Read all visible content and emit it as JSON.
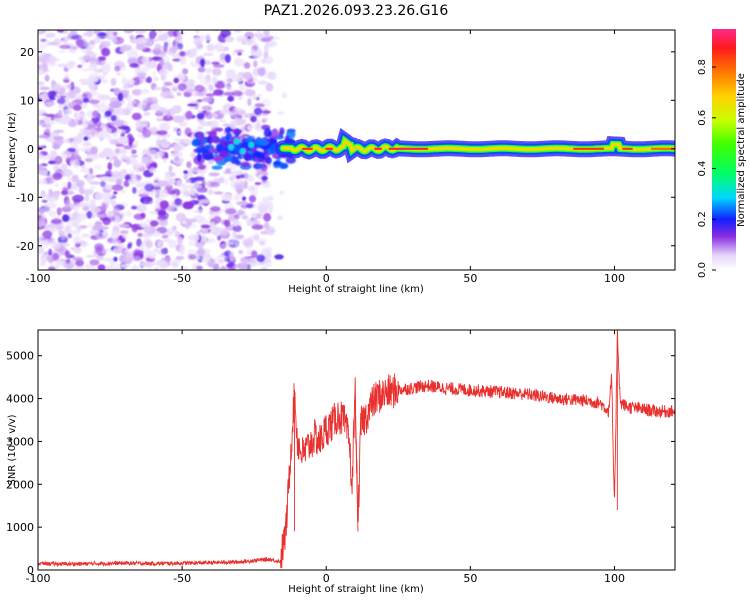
{
  "chart_data": [
    {
      "type": "heatmap",
      "title": "PAZ1.2026.093.23.26.G16",
      "xlabel": "Height of straight line (km)",
      "ylabel": "Frequency (Hz)",
      "xlim": [
        -100,
        121
      ],
      "ylim": [
        -25,
        24.5
      ],
      "xticks": [
        -100,
        -50,
        0,
        50,
        100
      ],
      "yticks": [
        -20,
        -10,
        0,
        10,
        20
      ],
      "colorbar": {
        "label": "Normalized spectral amplitude",
        "range": [
          0,
          0.95
        ],
        "ticks": [
          0.0,
          0.2,
          0.4,
          0.6,
          0.8
        ],
        "tick_labels": [
          "0.0",
          "0.2",
          "0.4",
          "0.6",
          "0.8"
        ]
      },
      "description_regions": [
        {
          "x_range": [
            -100,
            -19
          ],
          "f_range": [
            -25,
            24
          ],
          "amplitude": [
            0.02,
            0.25
          ],
          "pattern": "scattered noise speckles"
        },
        {
          "x_range": [
            -45,
            -12
          ],
          "f_range": [
            -4,
            4
          ],
          "amplitude": [
            0.15,
            0.4
          ],
          "pattern": "transition blobs"
        },
        {
          "x_range": [
            -15,
            121
          ],
          "f_center": 0,
          "f_halfwidth": 1.2,
          "amplitude": [
            0.6,
            0.95
          ],
          "pattern": "narrow carrier band"
        }
      ]
    },
    {
      "type": "line",
      "xlabel": "Height of straight line (km)",
      "ylabel": "SNR (10 * v/v)",
      "xlim": [
        -100,
        121
      ],
      "ylim": [
        0,
        5600
      ],
      "xticks": [
        -100,
        -50,
        0,
        50,
        100
      ],
      "yticks": [
        0,
        1000,
        2000,
        3000,
        4000,
        5000
      ],
      "color": "#e8302e",
      "series": [
        {
          "name": "SNR",
          "x": [
            -100,
            -90,
            -80,
            -70,
            -60,
            -50,
            -40,
            -30,
            -20,
            -16,
            -14,
            -13,
            -12,
            -11,
            -10,
            -9,
            -8,
            -6,
            -4,
            -2,
            0,
            2,
            4,
            6,
            8,
            9,
            10,
            11,
            12,
            14,
            16,
            18,
            20,
            22,
            25,
            30,
            35,
            40,
            45,
            50,
            60,
            70,
            80,
            90,
            95,
            98,
            99,
            100,
            101,
            102,
            105,
            110,
            115,
            121
          ],
          "y": [
            150,
            140,
            150,
            160,
            150,
            160,
            170,
            190,
            250,
            200,
            900,
            2000,
            3100,
            4150,
            3000,
            2800,
            2700,
            2900,
            3100,
            3000,
            3300,
            3400,
            3600,
            3500,
            3000,
            1900,
            4250,
            1000,
            3400,
            3600,
            3900,
            4050,
            4100,
            4150,
            4200,
            4250,
            4300,
            4250,
            4220,
            4200,
            4150,
            4100,
            4000,
            3950,
            3900,
            3700,
            4500,
            1400,
            5600,
            3900,
            3800,
            3750,
            3700,
            3700
          ]
        }
      ]
    }
  ]
}
